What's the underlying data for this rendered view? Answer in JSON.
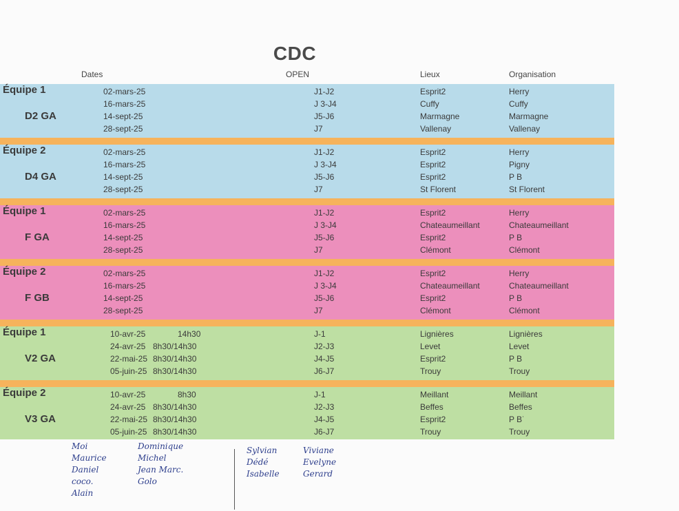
{
  "title": "CDC",
  "headers": {
    "dates": "Dates",
    "open": "OPEN",
    "lieux": "Lieux",
    "organisation": "Organisation"
  },
  "colors": {
    "blue": "#b8dbea",
    "pink": "#ec8fbc",
    "green": "#bedfa3",
    "separator": "#f6b35c"
  },
  "blocks": [
    {
      "team": "Équipe 1",
      "division": "D2 GA",
      "rows": [
        {
          "date": "02-mars-25",
          "hour": "",
          "open": "J1-J2",
          "lieu": "Esprit2",
          "org": "Herry"
        },
        {
          "date": "16-mars-25",
          "hour": "",
          "open": "J 3-J4",
          "lieu": "Cuffy",
          "org": "Cuffy"
        },
        {
          "date": "14-sept-25",
          "hour": "",
          "open": "J5-J6",
          "lieu": "Marmagne",
          "org": "Marmagne"
        },
        {
          "date": "28-sept-25",
          "hour": "",
          "open": "J7",
          "lieu": "Vallenay",
          "org": "Vallenay"
        }
      ]
    },
    {
      "team": "Équipe 2",
      "division": "D4 GA",
      "rows": [
        {
          "date": "02-mars-25",
          "hour": "",
          "open": "J1-J2",
          "lieu": "Esprit2",
          "org": "Herry"
        },
        {
          "date": "16-mars-25",
          "hour": "",
          "open": "J 3-J4",
          "lieu": "Esprit2",
          "org": "Pigny"
        },
        {
          "date": "14-sept-25",
          "hour": "",
          "open": "J5-J6",
          "lieu": "Esprit2",
          "org": "P B"
        },
        {
          "date": "28-sept-25",
          "hour": "",
          "open": "J7",
          "lieu": "St Florent",
          "org": "St Florent"
        }
      ]
    },
    {
      "team": "Équipe 1",
      "division": "F GA",
      "rows": [
        {
          "date": "02-mars-25",
          "hour": "",
          "open": "J1-J2",
          "lieu": "Esprit2",
          "org": "Herry"
        },
        {
          "date": "16-mars-25",
          "hour": "",
          "open": "J 3-J4",
          "lieu": "Chateaumeillant",
          "org": "Chateaumeillant"
        },
        {
          "date": "14-sept-25",
          "hour": "",
          "open": "J5-J6",
          "lieu": "Esprit2",
          "org": "P B"
        },
        {
          "date": "28-sept-25",
          "hour": "",
          "open": "J7",
          "lieu": "Clémont",
          "org": "Clémont"
        }
      ]
    },
    {
      "team": "Équipe 2",
      "division": "F GB",
      "rows": [
        {
          "date": "02-mars-25",
          "hour": "",
          "open": "J1-J2",
          "lieu": "Esprit2",
          "org": "Herry"
        },
        {
          "date": "16-mars-25",
          "hour": "",
          "open": "J 3-J4",
          "lieu": "Chateaumeillant",
          "org": "Chateaumeillant"
        },
        {
          "date": "14-sept-25",
          "hour": "",
          "open": "J5-J6",
          "lieu": "Esprit2",
          "org": "P B"
        },
        {
          "date": "28-sept-25",
          "hour": "",
          "open": "J7",
          "lieu": "Clémont",
          "org": "Clémont"
        }
      ]
    },
    {
      "team": "Équipe 1",
      "division": "V2 GA",
      "rows": [
        {
          "date": "10-avr-25",
          "hour": "14h30",
          "open": "J-1",
          "lieu": "Lignières",
          "org": "Lignières"
        },
        {
          "date": "24-avr-25",
          "hour": "8h30/14h30",
          "open": "J2-J3",
          "lieu": "Levet",
          "org": "Levet"
        },
        {
          "date": "22-mai-25",
          "hour": "8h30/14h30",
          "open": "J4-J5",
          "lieu": "Esprit2",
          "org": "P B"
        },
        {
          "date": "05-juin-25",
          "hour": "8h30/14h30",
          "open": "J6-J7",
          "lieu": "Trouy",
          "org": "Trouy"
        }
      ]
    },
    {
      "team": "Équipe 2",
      "division": "V3 GA",
      "rows": [
        {
          "date": "10-avr-25",
          "hour": "8h30",
          "open": "J-1",
          "lieu": "Meillant",
          "org": "Meillant"
        },
        {
          "date": "24-avr-25",
          "hour": "8h30/14h30",
          "open": "J2-J3",
          "lieu": "Beffes",
          "org": "Beffes"
        },
        {
          "date": "22-mai-25",
          "hour": "8h30/14h30",
          "open": "J4-J5",
          "lieu": "Esprit2",
          "org": "P B˙"
        },
        {
          "date": "05-juin-25",
          "hour": "8h30/14h30",
          "open": "J6-J7",
          "lieu": "Trouy",
          "org": "Trouy"
        }
      ]
    }
  ],
  "handwritten": {
    "col1": [
      "Moi",
      "Maurice",
      "Daniel",
      "coco.",
      "Alain"
    ],
    "col2": [
      "Dominique",
      "Michel",
      "Jean Marc.",
      "Golo"
    ],
    "col3": [
      "Sylvian",
      "Dédé",
      "Isabelle"
    ],
    "col4": [
      "Viviane",
      "Evelyne",
      "Gerard"
    ]
  }
}
